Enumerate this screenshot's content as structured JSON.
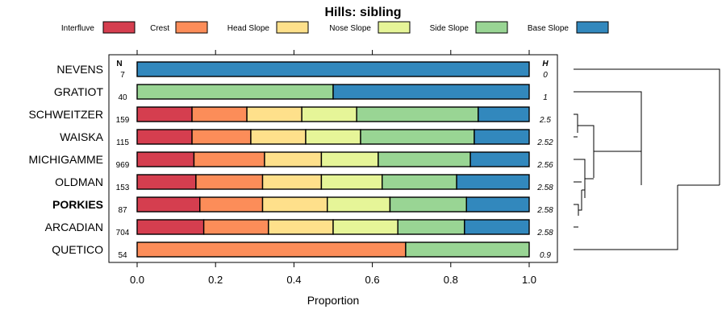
{
  "chart_data": {
    "type": "bar",
    "orientation": "horizontal",
    "stacked": true,
    "title": "Hills: sibling",
    "xlabel": "Proportion",
    "xlim": [
      0,
      1
    ],
    "xticks": [
      "0.0",
      "0.2",
      "0.4",
      "0.6",
      "0.8",
      "1.0"
    ],
    "n_header": "N",
    "h_header": "H",
    "legend": [
      {
        "name": "Interfluve",
        "color": "#D53E4F"
      },
      {
        "name": "Crest",
        "color": "#FC8D59"
      },
      {
        "name": "Head Slope",
        "color": "#FEE08B"
      },
      {
        "name": "Nose Slope",
        "color": "#E6F598"
      },
      {
        "name": "Side Slope",
        "color": "#99D594"
      },
      {
        "name": "Base Slope",
        "color": "#3288BD"
      }
    ],
    "rows": [
      {
        "name": "NEVENS",
        "n": "7",
        "h": "0",
        "bold": false,
        "values": [
          0,
          0,
          0,
          0,
          0,
          1.0
        ]
      },
      {
        "name": "GRATIOT",
        "n": "40",
        "h": "1",
        "bold": false,
        "values": [
          0,
          0,
          0,
          0,
          0.5,
          0.5
        ]
      },
      {
        "name": "SCHWEITZER",
        "n": "159",
        "h": "2.5",
        "bold": false,
        "values": [
          0.14,
          0.14,
          0.14,
          0.14,
          0.31,
          0.13
        ]
      },
      {
        "name": "WAISKA",
        "n": "115",
        "h": "2.52",
        "bold": false,
        "values": [
          0.14,
          0.15,
          0.14,
          0.14,
          0.29,
          0.14
        ]
      },
      {
        "name": "MICHIGAMME",
        "n": "969",
        "h": "2.56",
        "bold": false,
        "values": [
          0.145,
          0.18,
          0.145,
          0.145,
          0.235,
          0.15
        ]
      },
      {
        "name": "OLDMAN",
        "n": "153",
        "h": "2.58",
        "bold": false,
        "values": [
          0.15,
          0.17,
          0.15,
          0.155,
          0.19,
          0.185
        ]
      },
      {
        "name": "PORKIES",
        "n": "87",
        "h": "2.58",
        "bold": true,
        "values": [
          0.16,
          0.16,
          0.165,
          0.16,
          0.195,
          0.16
        ]
      },
      {
        "name": "ARCADIAN",
        "n": "704",
        "h": "2.58",
        "bold": false,
        "values": [
          0.17,
          0.165,
          0.165,
          0.165,
          0.17,
          0.165
        ]
      },
      {
        "name": "QUETICO",
        "n": "54",
        "h": "0.9",
        "bold": false,
        "values": [
          0,
          0.685,
          0,
          0,
          0.315,
          0
        ]
      }
    ],
    "dendrogram": true
  }
}
